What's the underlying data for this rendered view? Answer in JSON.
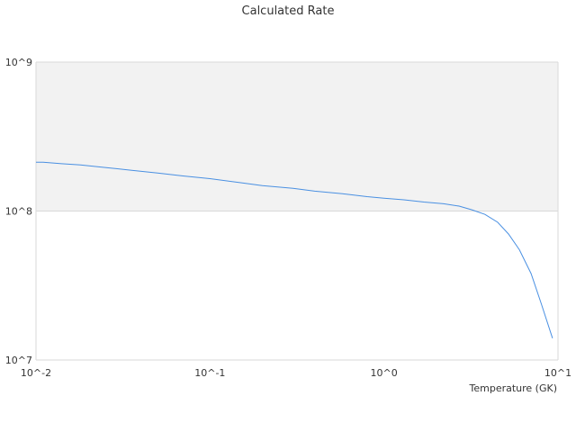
{
  "chart_data": {
    "type": "line",
    "title": "Calculated Rate",
    "xlabel": "Temperature (GK)",
    "ylabel": "",
    "x_scale": "log",
    "y_scale": "log",
    "xlim": [
      0.01,
      10
    ],
    "ylim": [
      10000000,
      1000000000
    ],
    "x_tick_labels": [
      "10^-2",
      "10^-1",
      "10^0",
      "10^1"
    ],
    "y_tick_labels": [
      "10^7",
      "10^8",
      "10^9"
    ],
    "grid": true,
    "legend": "none",
    "band_color": "#f2f2f2",
    "series": [
      {
        "color": "#4a90e2",
        "points": [
          [
            0.01,
            213000000
          ],
          [
            0.011,
            213000000
          ],
          [
            0.014,
            208000000
          ],
          [
            0.018,
            204000000
          ],
          [
            0.025,
            196000000
          ],
          [
            0.035,
            188000000
          ],
          [
            0.05,
            180000000
          ],
          [
            0.07,
            172000000
          ],
          [
            0.1,
            165000000
          ],
          [
            0.15,
            155000000
          ],
          [
            0.2,
            148000000
          ],
          [
            0.3,
            142000000
          ],
          [
            0.4,
            136000000
          ],
          [
            0.6,
            130000000
          ],
          [
            0.8,
            125000000
          ],
          [
            1.0,
            122000000
          ],
          [
            1.3,
            119000000
          ],
          [
            1.7,
            115000000
          ],
          [
            2.2,
            112000000
          ],
          [
            2.7,
            108000000
          ],
          [
            3.2,
            102000000
          ],
          [
            3.8,
            95000000
          ],
          [
            4.5,
            84000000
          ],
          [
            5.2,
            70000000
          ],
          [
            6.0,
            55000000
          ],
          [
            7.0,
            38000000
          ],
          [
            8.0,
            24000000
          ],
          [
            9.3,
            14000000
          ]
        ]
      }
    ]
  }
}
